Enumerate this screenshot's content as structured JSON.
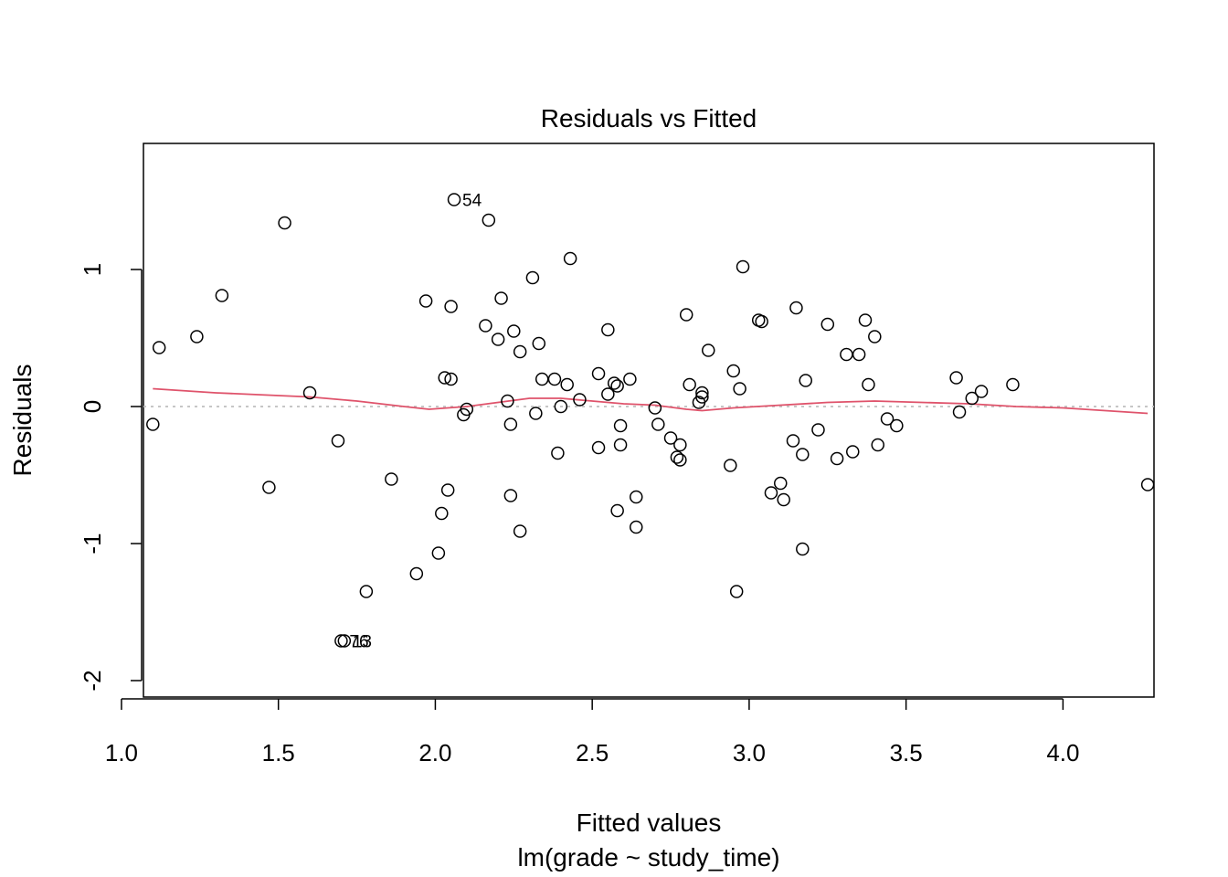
{
  "chart_data": {
    "type": "scatter",
    "title": "Residuals vs Fitted",
    "xlabel": "Fitted values",
    "subtitle": "lm(grade ~ study_time)",
    "ylabel": "Residuals",
    "xlim": [
      1.07,
      4.29
    ],
    "ylim": [
      -2.12,
      1.92
    ],
    "x_ticks": [
      1.0,
      1.5,
      2.0,
      2.5,
      3.0,
      3.5,
      4.0
    ],
    "x_tick_labels": [
      "1.0",
      "1.5",
      "2.0",
      "2.5",
      "3.0",
      "3.5",
      "4.0"
    ],
    "y_ticks": [
      -2,
      -1,
      0,
      1
    ],
    "y_tick_labels": [
      "-2",
      "-1",
      "0",
      "1"
    ],
    "grid": false,
    "reference_line": {
      "y": 0,
      "color": "#bebebe",
      "style": "dotted"
    },
    "smooth_color": "#df536b",
    "points": [
      [
        1.1,
        -0.13
      ],
      [
        1.12,
        0.43
      ],
      [
        1.24,
        0.51
      ],
      [
        1.32,
        0.81
      ],
      [
        1.47,
        -0.59
      ],
      [
        1.52,
        1.34
      ],
      [
        1.6,
        0.1
      ],
      [
        1.69,
        -0.25
      ],
      [
        1.7,
        -1.71
      ],
      [
        1.71,
        -1.71
      ],
      [
        1.78,
        -1.35
      ],
      [
        1.86,
        -0.53
      ],
      [
        1.94,
        -1.22
      ],
      [
        1.97,
        0.77
      ],
      [
        2.01,
        -1.07
      ],
      [
        2.02,
        -0.78
      ],
      [
        2.03,
        0.21
      ],
      [
        2.04,
        -0.61
      ],
      [
        2.05,
        0.2
      ],
      [
        2.05,
        0.73
      ],
      [
        2.06,
        1.51
      ],
      [
        2.09,
        -0.06
      ],
      [
        2.1,
        -0.02
      ],
      [
        2.16,
        0.59
      ],
      [
        2.17,
        1.36
      ],
      [
        2.2,
        0.49
      ],
      [
        2.21,
        0.79
      ],
      [
        2.23,
        0.04
      ],
      [
        2.24,
        -0.65
      ],
      [
        2.24,
        -0.13
      ],
      [
        2.25,
        0.55
      ],
      [
        2.27,
        -0.91
      ],
      [
        2.27,
        0.4
      ],
      [
        2.31,
        0.94
      ],
      [
        2.32,
        -0.05
      ],
      [
        2.33,
        0.46
      ],
      [
        2.34,
        0.2
      ],
      [
        2.38,
        0.2
      ],
      [
        2.39,
        -0.34
      ],
      [
        2.4,
        0.0
      ],
      [
        2.42,
        0.16
      ],
      [
        2.43,
        1.08
      ],
      [
        2.46,
        0.05
      ],
      [
        2.52,
        -0.3
      ],
      [
        2.52,
        0.24
      ],
      [
        2.55,
        0.09
      ],
      [
        2.55,
        0.56
      ],
      [
        2.57,
        0.17
      ],
      [
        2.58,
        -0.76
      ],
      [
        2.58,
        0.15
      ],
      [
        2.59,
        -0.28
      ],
      [
        2.59,
        -0.14
      ],
      [
        2.62,
        0.2
      ],
      [
        2.64,
        -0.66
      ],
      [
        2.64,
        -0.88
      ],
      [
        2.7,
        -0.01
      ],
      [
        2.71,
        -0.13
      ],
      [
        2.75,
        -0.23
      ],
      [
        2.77,
        -0.37
      ],
      [
        2.78,
        -0.28
      ],
      [
        2.78,
        -0.39
      ],
      [
        2.8,
        0.67
      ],
      [
        2.81,
        0.16
      ],
      [
        2.84,
        0.03
      ],
      [
        2.85,
        0.1
      ],
      [
        2.85,
        0.07
      ],
      [
        2.87,
        0.41
      ],
      [
        2.94,
        -0.43
      ],
      [
        2.95,
        0.26
      ],
      [
        2.96,
        -1.35
      ],
      [
        2.97,
        0.13
      ],
      [
        2.98,
        1.02
      ],
      [
        3.03,
        0.63
      ],
      [
        3.04,
        0.62
      ],
      [
        3.07,
        -0.63
      ],
      [
        3.1,
        -0.56
      ],
      [
        3.11,
        -0.68
      ],
      [
        3.14,
        -0.25
      ],
      [
        3.15,
        0.72
      ],
      [
        3.17,
        -0.35
      ],
      [
        3.17,
        -1.04
      ],
      [
        3.18,
        0.19
      ],
      [
        3.22,
        -0.17
      ],
      [
        3.25,
        0.6
      ],
      [
        3.28,
        -0.38
      ],
      [
        3.31,
        0.38
      ],
      [
        3.33,
        -0.33
      ],
      [
        3.35,
        0.38
      ],
      [
        3.37,
        0.63
      ],
      [
        3.38,
        0.16
      ],
      [
        3.4,
        0.51
      ],
      [
        3.41,
        -0.28
      ],
      [
        3.44,
        -0.09
      ],
      [
        3.47,
        -0.14
      ],
      [
        3.66,
        0.21
      ],
      [
        3.67,
        -0.04
      ],
      [
        3.71,
        0.06
      ],
      [
        3.74,
        0.11
      ],
      [
        3.84,
        0.16
      ],
      [
        4.27,
        -0.57
      ]
    ],
    "smooth": [
      [
        1.1,
        0.13
      ],
      [
        1.3,
        0.1
      ],
      [
        1.5,
        0.08
      ],
      [
        1.6,
        0.07
      ],
      [
        1.75,
        0.04
      ],
      [
        1.9,
        0.0
      ],
      [
        1.98,
        -0.02
      ],
      [
        2.1,
        0.0
      ],
      [
        2.2,
        0.03
      ],
      [
        2.3,
        0.06
      ],
      [
        2.4,
        0.06
      ],
      [
        2.5,
        0.04
      ],
      [
        2.6,
        0.02
      ],
      [
        2.7,
        0.01
      ],
      [
        2.8,
        -0.02
      ],
      [
        2.85,
        -0.03
      ],
      [
        2.95,
        -0.01
      ],
      [
        3.1,
        0.01
      ],
      [
        3.25,
        0.03
      ],
      [
        3.4,
        0.04
      ],
      [
        3.55,
        0.03
      ],
      [
        3.7,
        0.02
      ],
      [
        3.85,
        0.0
      ],
      [
        4.0,
        -0.01
      ],
      [
        4.27,
        -0.05
      ]
    ],
    "point_labels": [
      {
        "text": "54",
        "x": 2.06,
        "y": 1.51
      },
      {
        "text": "76",
        "x": 1.7,
        "y": -1.71
      },
      {
        "text": "13",
        "x": 1.71,
        "y": -1.71
      }
    ]
  }
}
